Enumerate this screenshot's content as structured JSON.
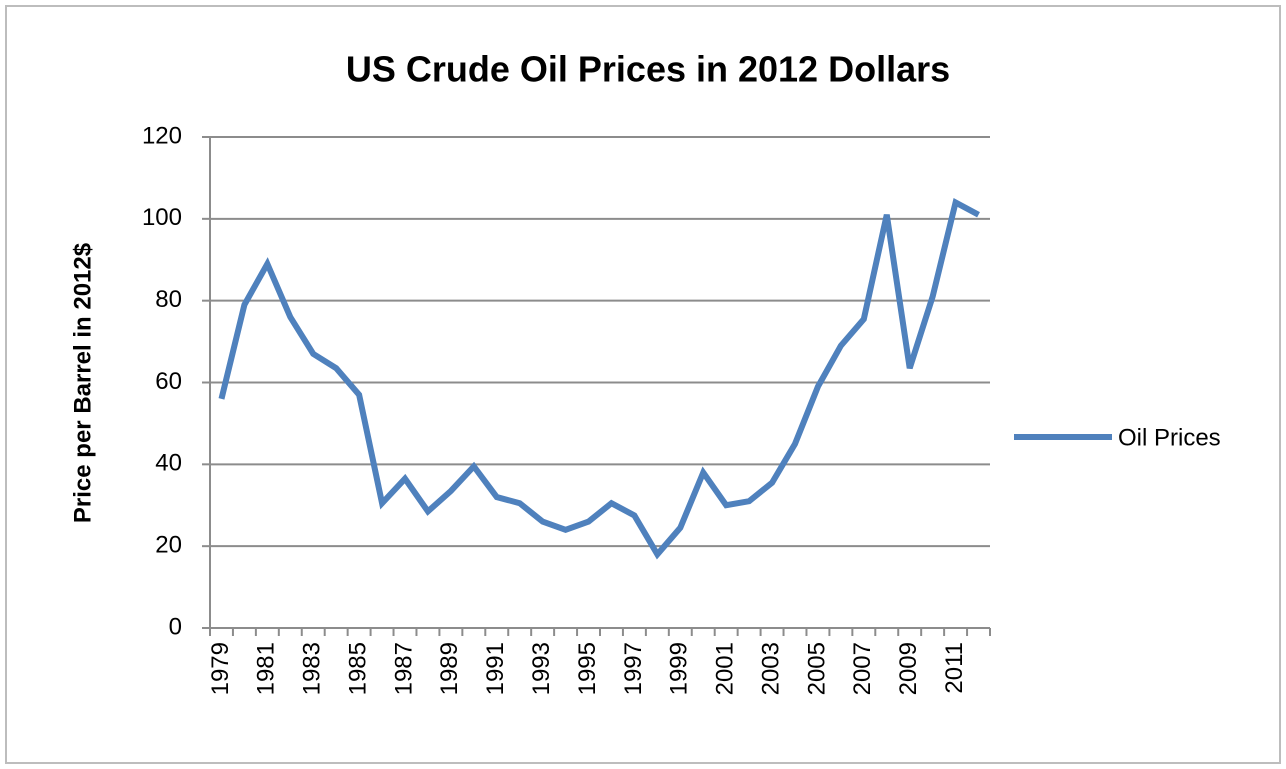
{
  "chart_data": {
    "type": "line",
    "title": "US Crude Oil Prices in 2012 Dollars",
    "y_label": "Price per Barrel in 2012$",
    "categories": [
      "1979",
      null,
      "1981",
      null,
      "1983",
      null,
      "1985",
      null,
      "1987",
      null,
      "1989",
      null,
      "1991",
      null,
      "1993",
      null,
      "1995",
      null,
      "1997",
      null,
      "1999",
      null,
      "2001",
      null,
      "2003",
      null,
      "2005",
      null,
      "2007",
      null,
      "2009",
      null,
      "2011",
      null
    ],
    "series": [
      {
        "name": "Oil Prices",
        "color": "#4f81bd",
        "values": [
          56,
          79,
          89,
          76,
          67,
          63.5,
          57,
          30.5,
          36.5,
          28.5,
          33.5,
          39.5,
          32,
          30.5,
          26,
          24,
          26,
          30.5,
          27.5,
          18,
          24.5,
          38,
          30,
          31,
          35.5,
          45,
          59,
          69,
          75.5,
          101,
          63.5,
          81,
          104,
          101
        ]
      }
    ],
    "ylim": [
      0,
      120
    ],
    "yticks": [
      0,
      20,
      40,
      60,
      80,
      100,
      120
    ],
    "grid": true,
    "legend": "right"
  }
}
